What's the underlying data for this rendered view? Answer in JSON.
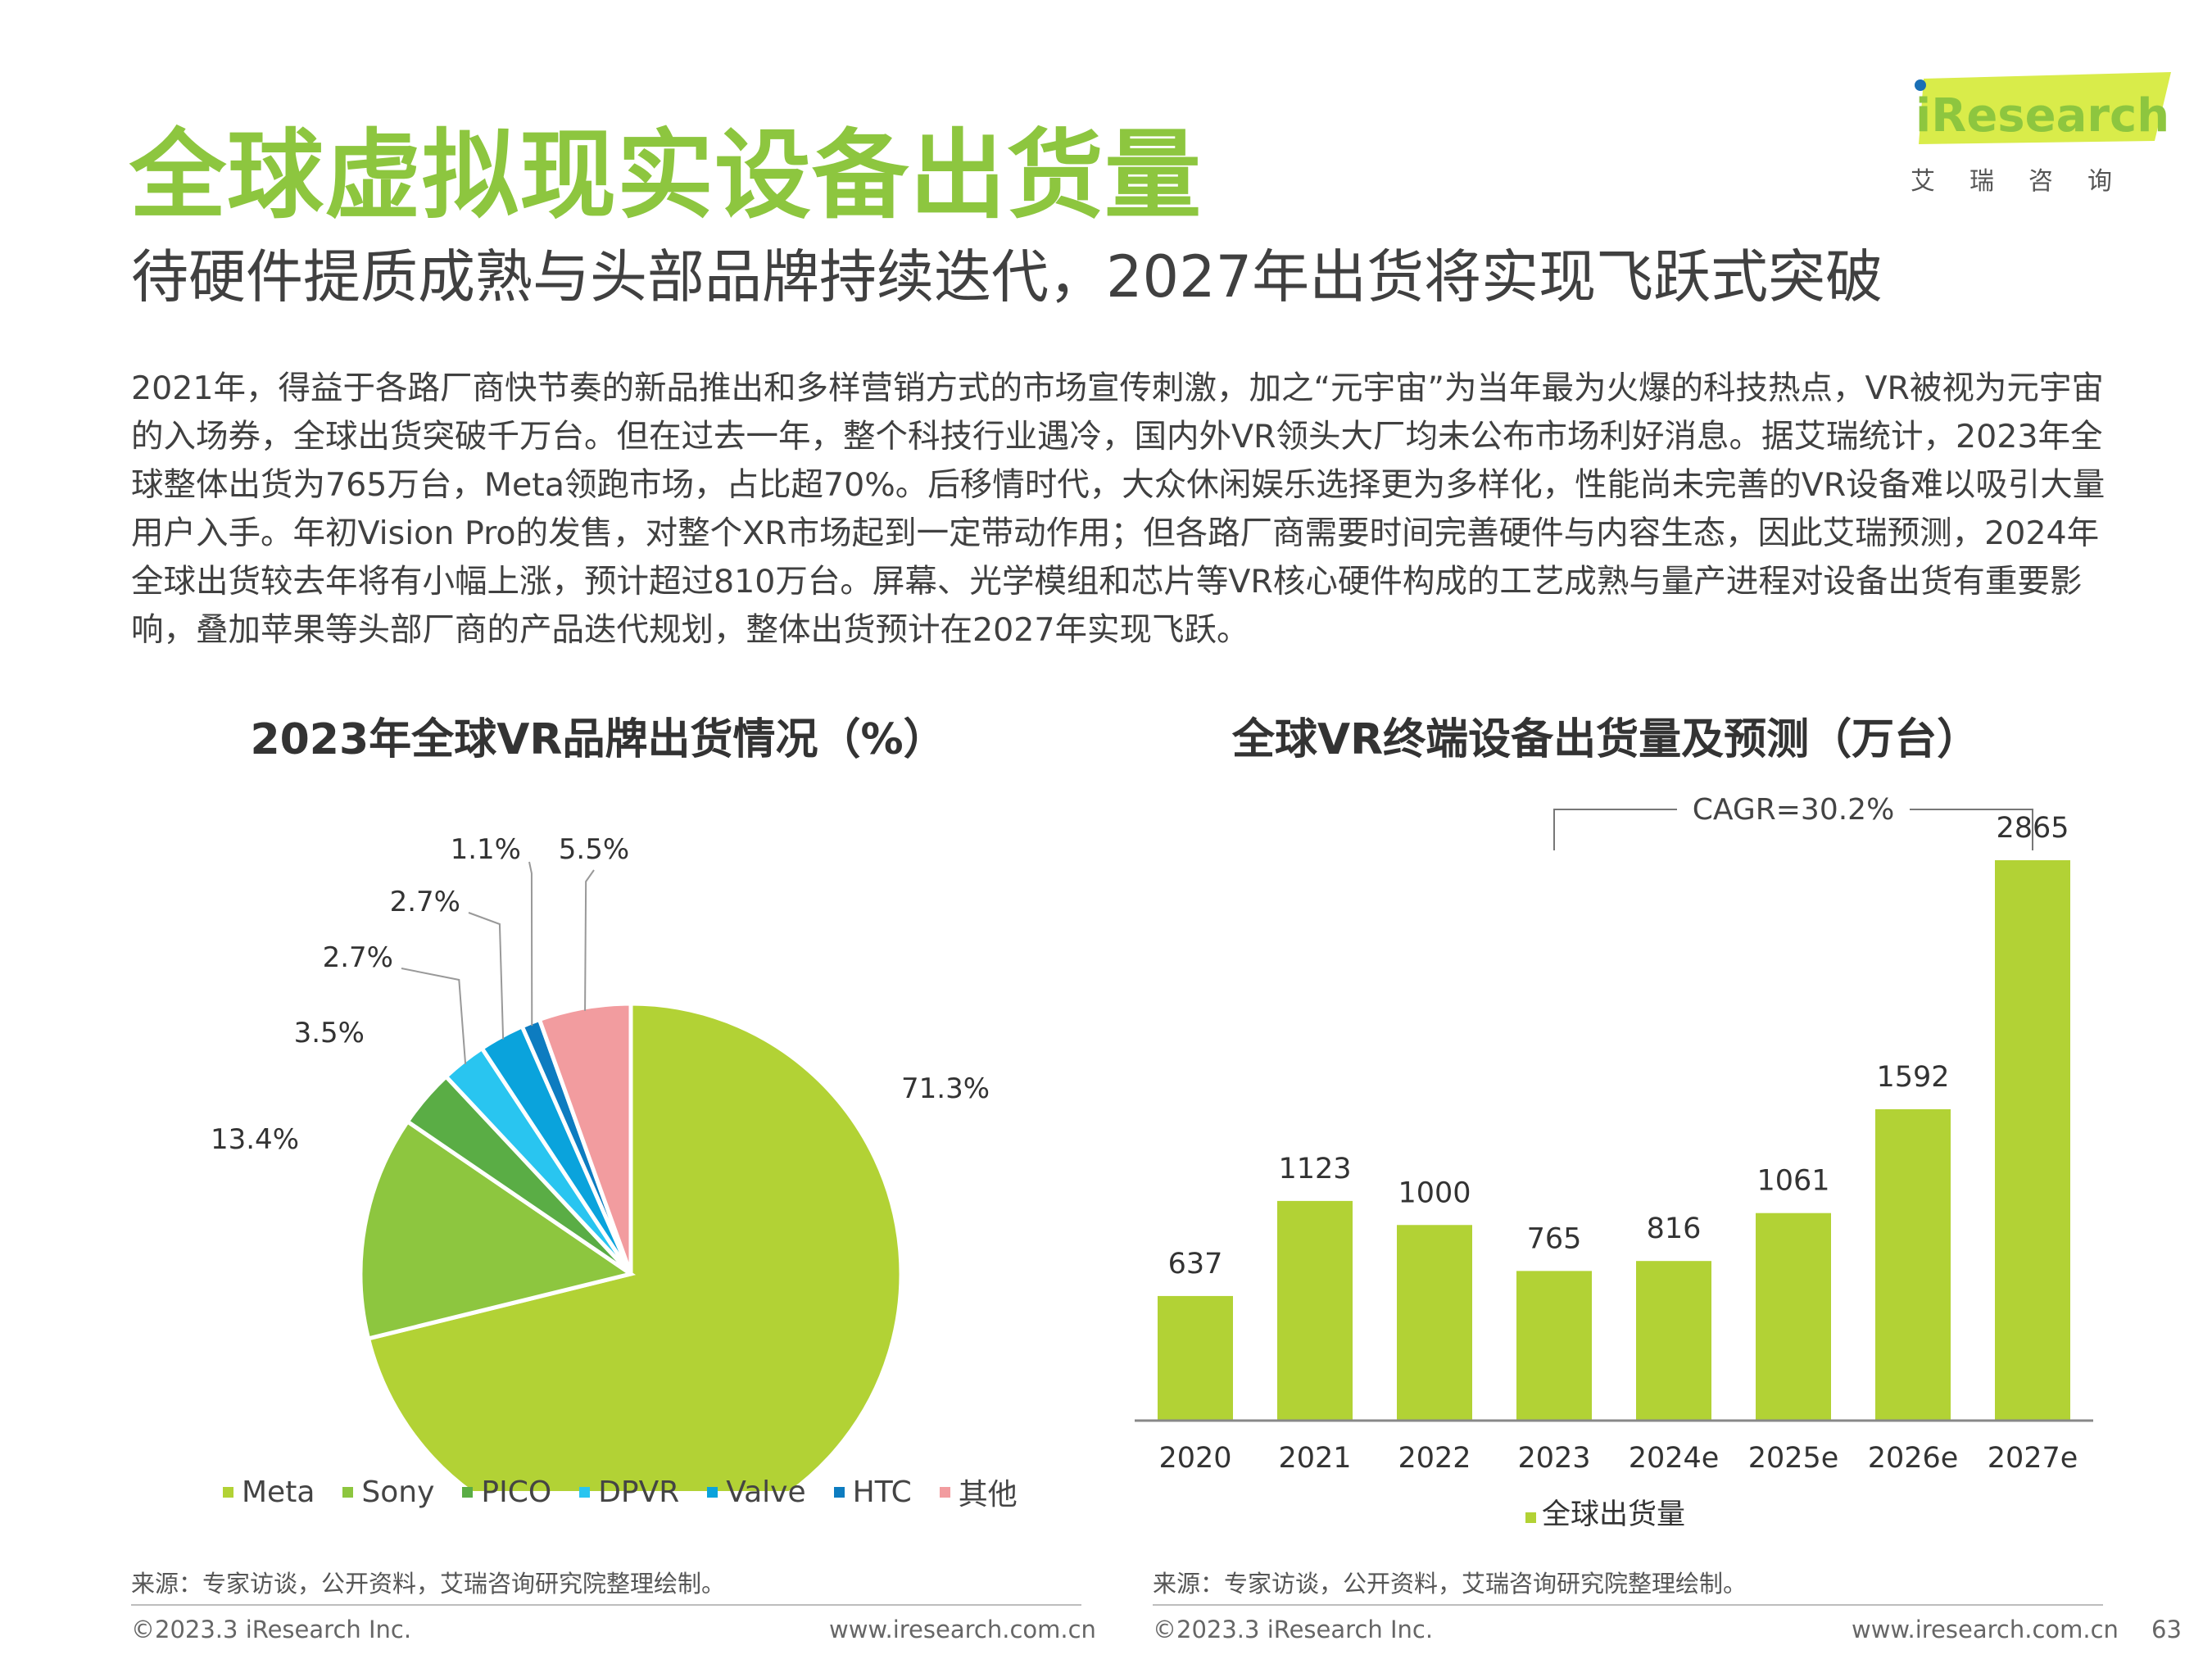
{
  "header": {
    "title": "全球虚拟现实设备出货量",
    "subtitle": "待硬件提质成熟与头部品牌持续迭代，2027年出货将实现飞跃式突破"
  },
  "logo": {
    "brand": "iResearch",
    "sub": "艾瑞咨询",
    "brand_color": "#8dc63f",
    "dot_color": "#1a6fb5"
  },
  "body_text": "2021年，得益于各路厂商快节奏的新品推出和多样营销方式的市场宣传刺激，加之“元宇宙”为当年最为火爆的科技热点，VR被视为元宇宙的入场券，全球出货突破千万台。但在过去一年，整个科技行业遇冷，国内外VR领头大厂均未公布市场利好消息。据艾瑞统计，2023年全球整体出货为765万台，Meta领跑市场，占比超70%。后移情时代，大众休闲娱乐选择更为多样化，性能尚未完善的VR设备难以吸引大量用户入手。年初Vision Pro的发售，对整个XR市场起到一定带动作用；但各路厂商需要时间完善硬件与内容生态，因此艾瑞预测，2024年全球出货较去年将有小幅上涨，预计超过810万台。屏幕、光学模组和芯片等VR核心硬件构成的工艺成熟与量产进程对设备出货有重要影响，叠加苹果等头部厂商的产品迭代规划，整体出货预计在2027年实现飞跃。",
  "pie": {
    "title": "2023年全球VR品牌出货情况（%）",
    "source": "来源：专家访谈，公开资料，艾瑞咨询研究院整理绘制。"
  },
  "bar": {
    "title": "全球VR终端设备出货量及预测（万台）",
    "cagr": "CAGR=30.2%",
    "source": "来源：专家访谈，公开资料，艾瑞咨询研究院整理绘制。"
  },
  "footer": {
    "copyright": "©2023.3 iResearch Inc.",
    "url": "www.iresearch.com.cn",
    "page": "63"
  },
  "chart_data": [
    {
      "type": "pie",
      "title": "2023年全球VR品牌出货情况（%）",
      "labels": [
        "Meta",
        "Sony",
        "PICO",
        "DPVR",
        "Valve",
        "HTC",
        "其他"
      ],
      "values": [
        71.3,
        13.4,
        3.5,
        2.7,
        2.7,
        1.1,
        5.5
      ],
      "value_labels": [
        "71.3%",
        "13.4%",
        "3.5%",
        "2.7%",
        "2.7%",
        "1.1%",
        "5.5%"
      ],
      "colors": [
        "#b2d235",
        "#8dc63f",
        "#5aad45",
        "#29c5f0",
        "#0aa3dc",
        "#0d7cc0",
        "#f29c9f"
      ],
      "legend_position": "bottom"
    },
    {
      "type": "bar",
      "title": "全球VR终端设备出货量及预测（万台）",
      "categories": [
        "2020",
        "2021",
        "2022",
        "2023",
        "2024e",
        "2025e",
        "2026e",
        "2027e"
      ],
      "series": [
        {
          "name": "全球出货量",
          "values": [
            637,
            1123,
            1000,
            765,
            816,
            1061,
            1592,
            2865
          ],
          "color": "#b2d235"
        }
      ],
      "annotation": "CAGR=30.2%",
      "legend_position": "bottom",
      "grid": false
    }
  ]
}
